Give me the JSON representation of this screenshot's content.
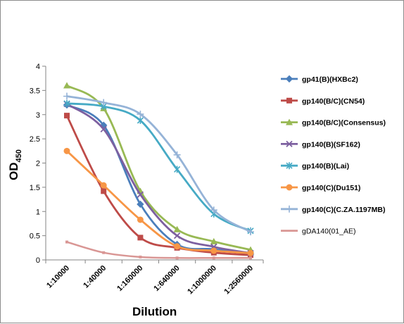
{
  "chart_data": {
    "type": "line",
    "xlabel": "Dilution",
    "ylabel_main": "OD",
    "ylabel_sub": "450",
    "ylim": [
      0,
      4
    ],
    "yticks": [
      "0",
      "0.5",
      "1",
      "1.5",
      "2",
      "2.5",
      "3",
      "3.5",
      "4"
    ],
    "ytick_values": [
      0,
      0.5,
      1,
      1.5,
      2,
      2.5,
      3,
      3.5,
      4
    ],
    "categories": [
      "1:10000",
      "1:40000",
      "1:160000",
      "1:640000",
      "1:1000000",
      "1:2560000"
    ],
    "grid": false,
    "legend_position": "right",
    "series": [
      {
        "name": "gp41(B)(HXBc2)",
        "color": "#4a7ebb",
        "marker": "diamond",
        "values": [
          3.2,
          2.78,
          1.15,
          0.32,
          0.22,
          0.12
        ]
      },
      {
        "name": "gp140(B/C)(CN54)",
        "color": "#be4b48",
        "marker": "square",
        "values": [
          2.98,
          1.42,
          0.46,
          0.25,
          0.15,
          0.1
        ]
      },
      {
        "name": "gp140(B/C)(Consensus)",
        "color": "#98b954",
        "marker": "triangle",
        "values": [
          3.6,
          3.13,
          1.42,
          0.63,
          0.38,
          0.21
        ]
      },
      {
        "name": "gp140(B)(SF162)",
        "color": "#7d60a0",
        "marker": "x",
        "values": [
          3.22,
          2.7,
          1.35,
          0.5,
          0.27,
          0.14
        ]
      },
      {
        "name": "gp140(B)(Lai)",
        "color": "#46aac5",
        "marker": "star",
        "values": [
          3.23,
          3.17,
          2.88,
          1.87,
          0.95,
          0.6
        ]
      },
      {
        "name": "gp140(C)(Du151)",
        "color": "#f79646",
        "marker": "circle",
        "values": [
          2.25,
          1.54,
          0.83,
          0.28,
          0.19,
          0.14
        ]
      },
      {
        "name": "gp140(C)(C.ZA.1197MB)",
        "color": "#95b3d7",
        "marker": "plus",
        "values": [
          3.38,
          3.25,
          3.01,
          2.17,
          1.03,
          0.58
        ]
      },
      {
        "name": "gDA140(01_AE)",
        "color": "#d99694",
        "marker": "none",
        "bold_legend": false,
        "values": [
          0.37,
          0.15,
          0.06,
          0.04,
          0.04,
          0.04
        ]
      }
    ]
  }
}
